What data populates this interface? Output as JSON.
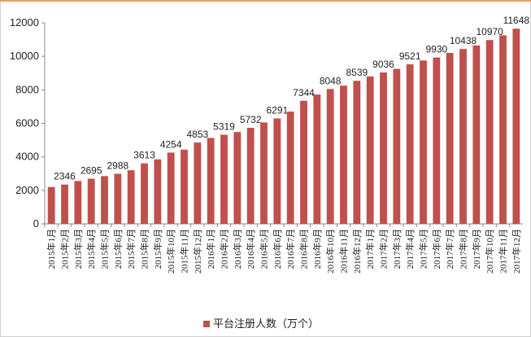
{
  "chart_data": {
    "type": "bar",
    "categories": [
      "2015年1月",
      "2015年2月",
      "2015年3月",
      "2015年4月",
      "2015年5月",
      "2015年6月",
      "2015年7月",
      "2015年8月",
      "2015年9月",
      "2015年10月",
      "2015年11月",
      "2015年12月",
      "2016年1月",
      "2016年2月",
      "2016年3月",
      "2016年4月",
      "2016年5月",
      "2016年6月",
      "2016年7月",
      "2016年8月",
      "2016年9月",
      "2016年10月",
      "2016年11月",
      "2016年12月",
      "2017年1月",
      "2017年2月",
      "2017年3月",
      "2017年4月",
      "2017年5月",
      "2017年6月",
      "2017年7月",
      "2017年8月",
      "2017年9月",
      "2017年10月",
      "2017年11月",
      "2017年12月"
    ],
    "series": [
      {
        "name": "平台注册人数（万个）",
        "color": "#c0504d",
        "values": [
          2200,
          2346,
          2560,
          2695,
          2850,
          2988,
          3200,
          3613,
          3850,
          4254,
          4430,
          4853,
          5130,
          5319,
          5480,
          5732,
          6050,
          6291,
          6700,
          7344,
          7720,
          8048,
          8250,
          8539,
          8800,
          9036,
          9250,
          9521,
          9750,
          9930,
          10200,
          10438,
          10650,
          10970,
          11250,
          11648
        ],
        "value_labels": [
          null,
          "2346",
          null,
          "2695",
          null,
          "2988",
          null,
          "3613",
          null,
          "4254",
          null,
          "4853",
          null,
          "5319",
          null,
          "5732",
          null,
          "6291",
          null,
          "7344",
          null,
          "8048",
          null,
          "8539",
          null,
          "9036",
          null,
          "9521",
          null,
          "9930",
          null,
          "10438",
          null,
          "10970",
          null,
          "11648"
        ]
      }
    ],
    "ylim": [
      0,
      12000
    ],
    "yticks": [
      0,
      2000,
      4000,
      6000,
      8000,
      10000,
      12000
    ],
    "grid": false,
    "legend": "bottom"
  }
}
